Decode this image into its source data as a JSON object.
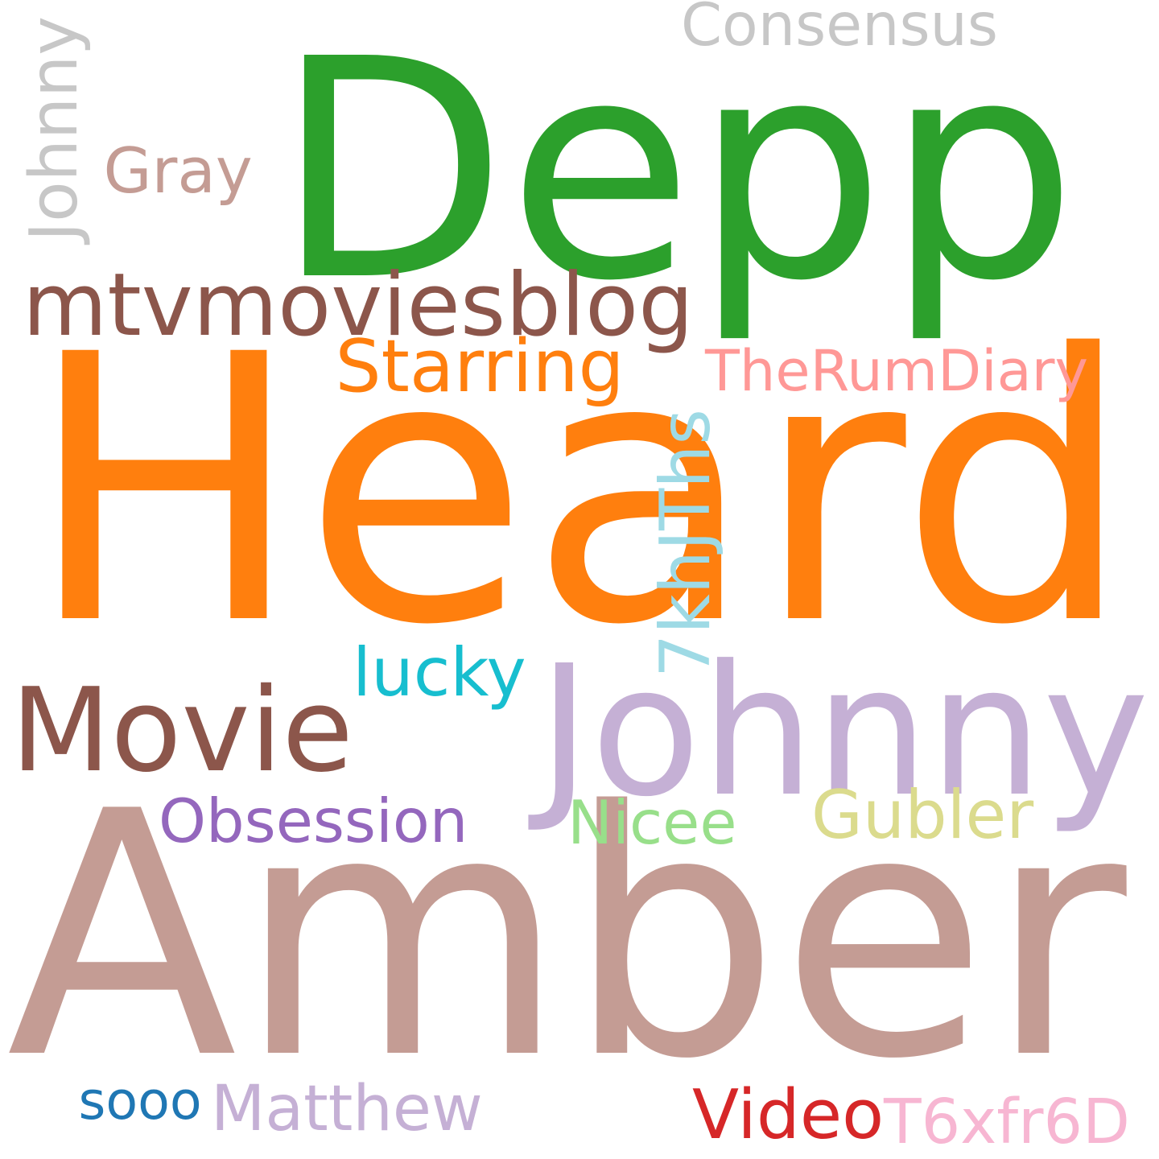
{
  "words": [
    {
      "key": "depp",
      "text": "Depp",
      "color": "#2ca02c"
    },
    {
      "key": "heard",
      "text": "Heard",
      "color": "#ff7f0e"
    },
    {
      "key": "amber",
      "text": "Amber",
      "color": "#c49c94"
    },
    {
      "key": "johnny-large",
      "text": "Johnny",
      "color": "#c5b0d5"
    },
    {
      "key": "movie",
      "text": "Movie",
      "color": "#8c564b"
    },
    {
      "key": "mtvmoviesblog",
      "text": "mtvmoviesblog",
      "color": "#8c564b"
    },
    {
      "key": "consensus",
      "text": "Consensus",
      "color": "#c7c7c7"
    },
    {
      "key": "johnny-vertical",
      "text": "Johnny",
      "color": "#c7c7c7"
    },
    {
      "key": "gray",
      "text": "Gray",
      "color": "#c49c94"
    },
    {
      "key": "starring",
      "text": "Starring",
      "color": "#ff7f0e"
    },
    {
      "key": "therumdiary",
      "text": "TheRumDiary",
      "color": "#ff9896"
    },
    {
      "key": "7khjths",
      "text": "7khJThs",
      "color": "#9edae5"
    },
    {
      "key": "lucky",
      "text": "lucky",
      "color": "#17becf"
    },
    {
      "key": "obsession",
      "text": "Obsession",
      "color": "#9467bd"
    },
    {
      "key": "nicee",
      "text": "Nicee",
      "color": "#98df8a"
    },
    {
      "key": "gubler",
      "text": "Gubler",
      "color": "#dbdb8d"
    },
    {
      "key": "sooo",
      "text": "sooo",
      "color": "#1f77b4"
    },
    {
      "key": "matthew",
      "text": "Matthew",
      "color": "#c5b0d5"
    },
    {
      "key": "video",
      "text": "Video",
      "color": "#d62728"
    },
    {
      "key": "t6xfr6d",
      "text": "T6xfr6D",
      "color": "#f7b6d2"
    }
  ]
}
